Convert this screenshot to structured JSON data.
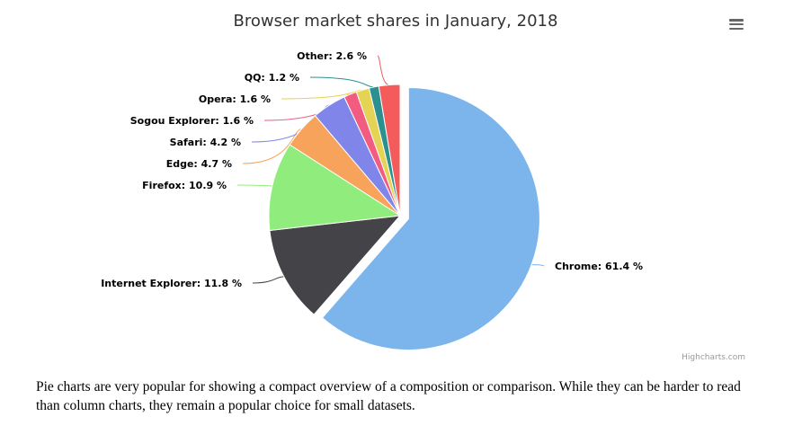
{
  "chart_data": {
    "type": "pie",
    "title": "Browser market shares in January, 2018",
    "slices": [
      {
        "name": "Chrome",
        "y": 61.4,
        "label": "Chrome: 61.4 %",
        "color": "#7cb5ec",
        "sliced": true
      },
      {
        "name": "Internet Explorer",
        "y": 11.8,
        "label": "Internet Explorer: 11.8 %",
        "color": "#434348"
      },
      {
        "name": "Firefox",
        "y": 10.9,
        "label": "Firefox: 10.9 %",
        "color": "#90ed7d"
      },
      {
        "name": "Edge",
        "y": 4.7,
        "label": "Edge: 4.7 %",
        "color": "#f7a35c"
      },
      {
        "name": "Safari",
        "y": 4.2,
        "label": "Safari: 4.2 %",
        "color": "#8085e9"
      },
      {
        "name": "Sogou Explorer",
        "y": 1.6,
        "label": "Sogou Explorer: 1.6 %",
        "color": "#f15c80"
      },
      {
        "name": "Opera",
        "y": 1.6,
        "label": "Opera: 1.6 %",
        "color": "#e4d354"
      },
      {
        "name": "QQ",
        "y": 1.2,
        "label": "QQ: 1.2 %",
        "color": "#2b908f"
      },
      {
        "name": "Other",
        "y": 2.6,
        "label": "Other: 2.6 %",
        "color": "#f45b5b"
      }
    ],
    "credits": "Highcharts.com"
  },
  "menu": {
    "icon": "hamburger-menu-icon"
  },
  "description": "Pie charts are very popular for showing a compact overview of a composition or comparison. While they can be harder to read than column charts, they remain a popular choice for small datasets."
}
